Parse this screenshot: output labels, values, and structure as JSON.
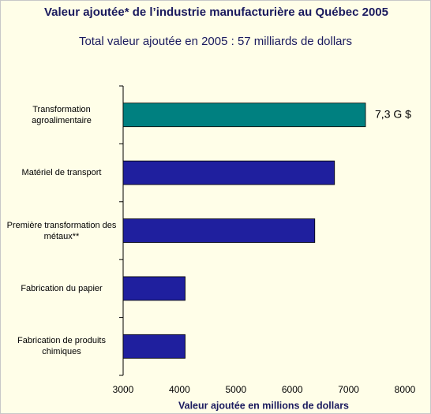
{
  "chart_data": {
    "type": "barh",
    "title": "Valeur ajoutée* de l’industrie manufacturière au Québec 2005",
    "subtitle": "Total valeur ajoutée en 2005 : 57 milliards de dollars",
    "x_label": "Valeur ajoutée en millions de dollars",
    "categories": [
      "Transformation agroalimentaire",
      "Matériel de transport",
      "Première transformation des métaux**",
      "Fabrication du papier",
      "Fabrication de produits chimiques"
    ],
    "values": [
      7300,
      6750,
      6400,
      4100,
      4100
    ],
    "value_labels": [
      "7,3 G $",
      null,
      null,
      null,
      null
    ],
    "colors": [
      "#008080",
      "#1f1f9e",
      "#1f1f9e",
      "#1f1f9e",
      "#1f1f9e"
    ],
    "xlim": [
      3000,
      8000
    ],
    "xticks": [
      3000,
      4000,
      5000,
      6000,
      7000,
      8000
    ]
  }
}
